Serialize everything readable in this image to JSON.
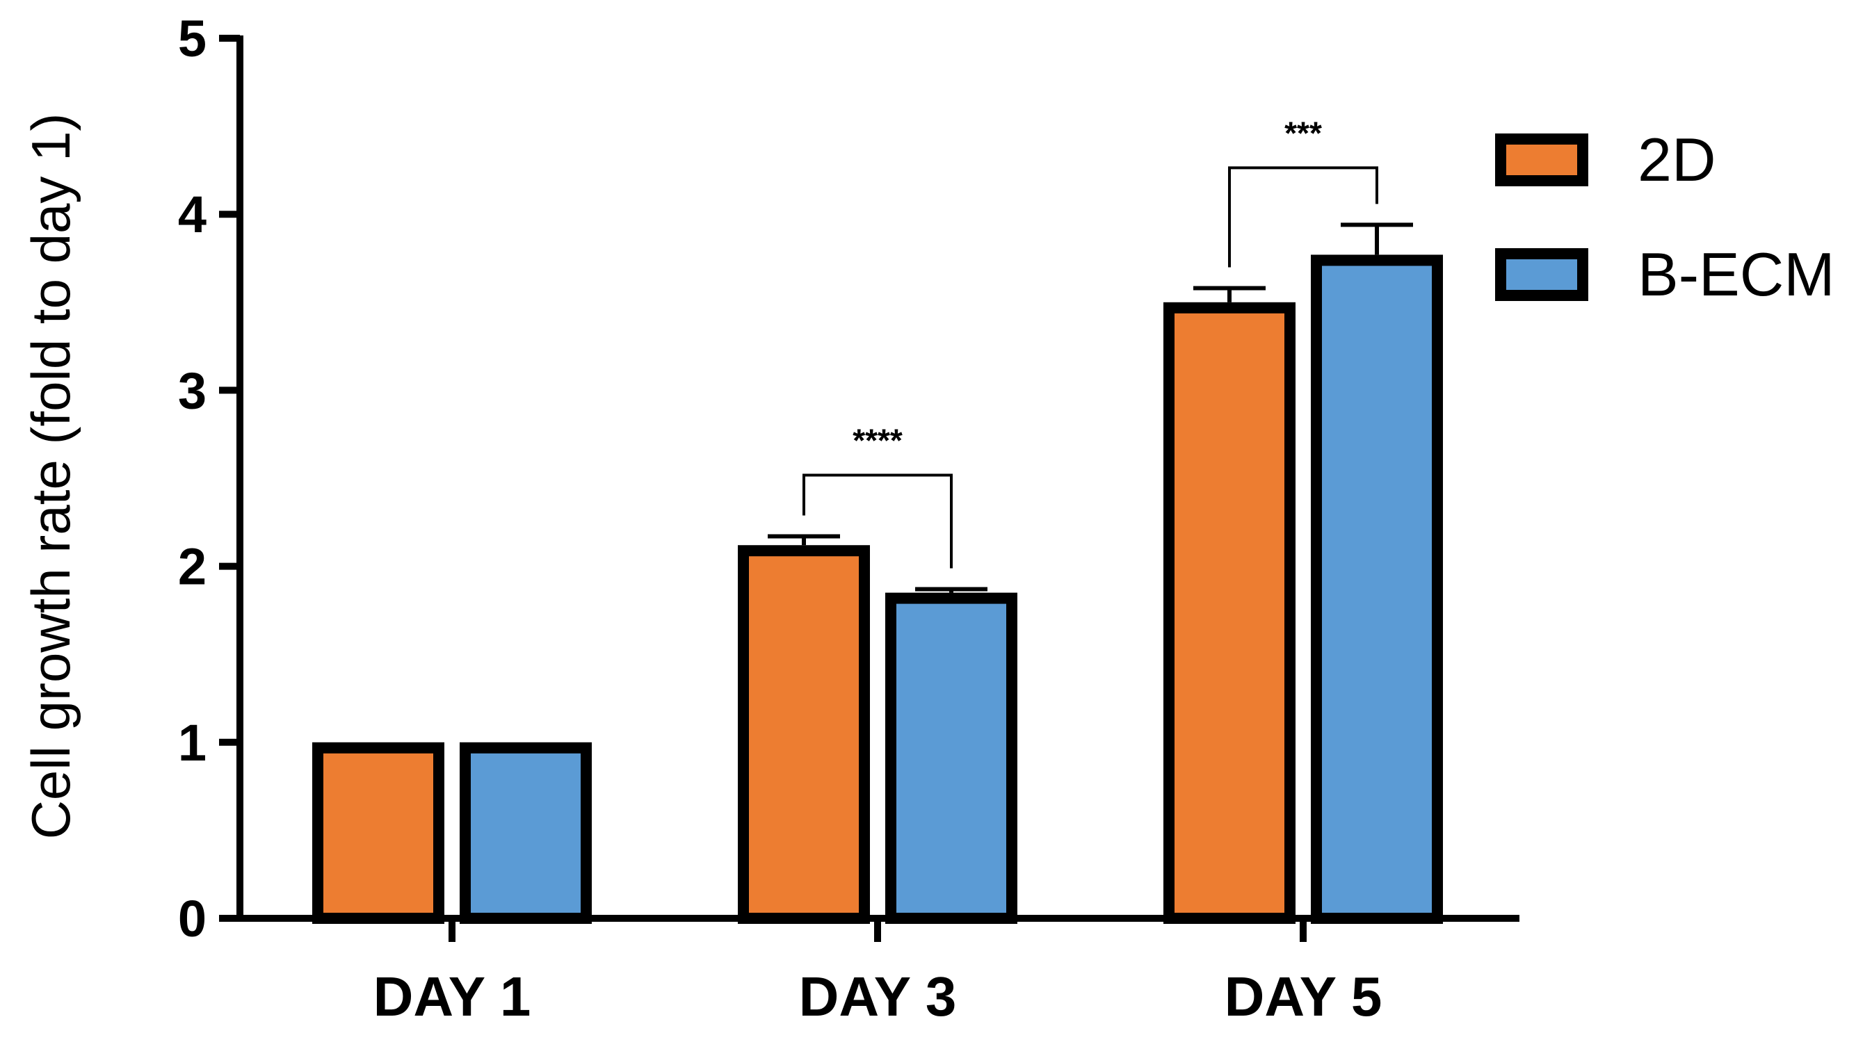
{
  "chart_data": {
    "type": "bar",
    "title": "",
    "xlabel": "",
    "ylabel": "Cell growth rate (fold to day 1)",
    "ylim": [
      0,
      5
    ],
    "yticks": [
      "0",
      "1",
      "2",
      "3",
      "4",
      "5"
    ],
    "categories": [
      "DAY 1",
      "DAY 3",
      "DAY 5"
    ],
    "series": [
      {
        "name": "2D",
        "color": "#ED7D31",
        "values": [
          1.0,
          2.12,
          3.5
        ],
        "errors": [
          0,
          0.05,
          0.08
        ]
      },
      {
        "name": "B-ECM",
        "color": "#5B9BD5",
        "values": [
          1.0,
          1.85,
          3.77
        ],
        "errors": [
          0,
          0.02,
          0.17
        ]
      }
    ],
    "significance": [
      {
        "category": "DAY 3",
        "label": "****"
      },
      {
        "category": "DAY 5",
        "label": "***"
      }
    ],
    "legend_position": "top-right",
    "grid": false
  }
}
